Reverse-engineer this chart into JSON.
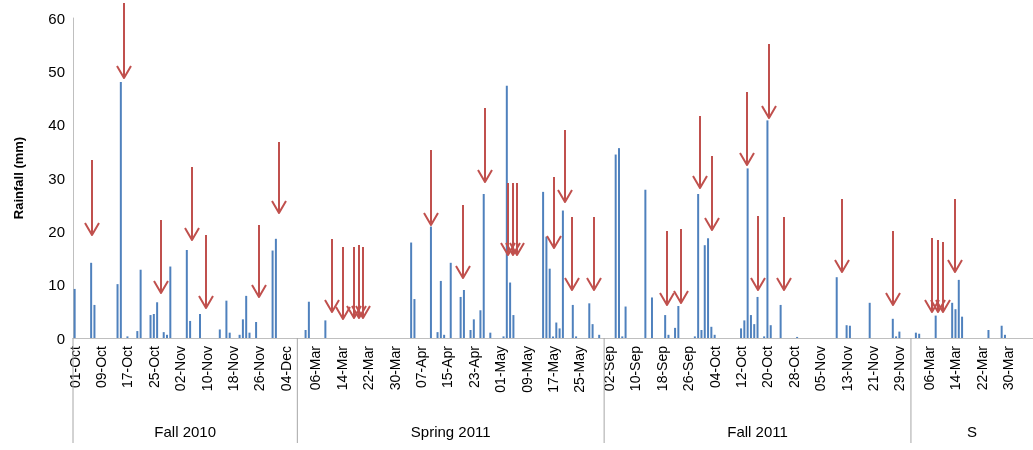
{
  "chart_data": {
    "type": "bar",
    "ylabel": "Rainfall (mm)",
    "color": "#4f81bd",
    "ylim": [
      0,
      60
    ],
    "yticks": [
      0,
      10,
      20,
      30,
      40,
      50,
      60
    ],
    "grid": false,
    "annotations": [
      "Fall 2010",
      "Spring 2011",
      "Fall 2011",
      "S"
    ],
    "categories": [
      "01-Oct",
      null,
      null,
      null,
      null,
      null,
      null,
      null,
      "09-Oct",
      null,
      null,
      null,
      null,
      null,
      null,
      null,
      "17-Oct",
      null,
      null,
      null,
      null,
      null,
      null,
      null,
      "25-Oct",
      null,
      null,
      null,
      null,
      null,
      null,
      null,
      "02-Nov",
      null,
      null,
      null,
      null,
      null,
      null,
      null,
      "10-Nov",
      null,
      null,
      null,
      null,
      null,
      null,
      null,
      "18-Nov",
      null,
      null,
      null,
      null,
      null,
      null,
      null,
      "26-Nov",
      null,
      null,
      null,
      null,
      null,
      null,
      null,
      "04-Dec",
      null,
      null,
      null,
      null,
      null,
      null,
      null,
      null,
      "06-Mar",
      null,
      null,
      null,
      null,
      null,
      null,
      null,
      "14-Mar",
      null,
      null,
      null,
      null,
      null,
      null,
      null,
      "22-Mar",
      null,
      null,
      null,
      null,
      null,
      null,
      null,
      "30-Mar",
      null,
      null,
      null,
      null,
      null,
      null,
      null,
      "07-Apr",
      null,
      null,
      null,
      null,
      null,
      null,
      null,
      "15-Apr",
      null,
      null,
      null,
      null,
      null,
      null,
      null,
      "23-Apr",
      null,
      null,
      null,
      null,
      null,
      null,
      null,
      "01-May",
      null,
      null,
      null,
      null,
      null,
      null,
      null,
      "09-May",
      null,
      null,
      null,
      null,
      null,
      null,
      null,
      "17-May",
      null,
      null,
      null,
      null,
      null,
      null,
      null,
      "25-May",
      null,
      null,
      null,
      null,
      null,
      null,
      null,
      null,
      "02-Sep",
      null,
      null,
      null,
      null,
      null,
      null,
      null,
      "10-Sep",
      null,
      null,
      null,
      null,
      null,
      null,
      null,
      "18-Sep",
      null,
      null,
      null,
      null,
      null,
      null,
      null,
      "26-Sep",
      null,
      null,
      null,
      null,
      null,
      null,
      null,
      "04-Oct",
      null,
      null,
      null,
      null,
      null,
      null,
      null,
      "12-Oct",
      null,
      null,
      null,
      null,
      null,
      null,
      null,
      "20-Oct",
      null,
      null,
      null,
      null,
      null,
      null,
      null,
      "28-Oct",
      null,
      null,
      null,
      null,
      null,
      null,
      null,
      "05-Nov",
      null,
      null,
      null,
      null,
      null,
      null,
      null,
      "13-Nov",
      null,
      null,
      null,
      null,
      null,
      null,
      null,
      "21-Nov",
      null,
      null,
      null,
      null,
      null,
      null,
      null,
      "29-Nov",
      null,
      null,
      null,
      null,
      null,
      null,
      null,
      null,
      "06-Mar",
      null,
      null,
      null,
      null,
      null,
      null,
      null,
      "14-Mar",
      null,
      null,
      null,
      null,
      null,
      null,
      null,
      "22-Mar",
      null,
      null,
      null,
      null,
      null,
      null,
      null,
      "30-Mar",
      null,
      null,
      null,
      null,
      null,
      null,
      null
    ],
    "values": [
      9.2,
      0,
      0,
      0,
      0,
      14.1,
      6.2,
      0,
      0,
      0,
      0,
      0,
      0,
      10.1,
      48,
      0,
      0.3,
      0,
      0,
      1.3,
      12.8,
      0,
      0,
      4.3,
      4.5,
      6.7,
      0,
      1.1,
      0.6,
      13.4,
      0,
      0,
      0,
      0,
      16.5,
      3.2,
      0,
      0,
      4.5,
      0,
      0,
      0,
      0,
      0,
      1.6,
      0,
      7.0,
      1.0,
      0,
      0,
      0.6,
      3.5,
      7.9,
      1.0,
      0,
      3.0,
      0,
      0,
      0,
      0,
      16.4,
      18.6,
      0,
      0,
      0,
      0,
      0,
      0,
      0,
      0,
      1.5,
      6.8,
      0,
      0,
      0,
      0,
      3.3,
      0,
      0,
      0,
      0,
      0,
      0,
      0,
      0,
      0,
      0,
      0,
      0,
      0,
      0,
      0,
      0,
      0,
      0,
      0,
      0,
      0,
      0,
      0,
      0,
      0,
      17.9,
      7.3,
      0,
      0,
      0,
      0,
      20.9,
      0,
      1.1,
      10.7,
      0.6,
      0,
      14.1,
      0,
      0,
      7.7,
      9.0,
      0,
      1.5,
      3.5,
      0,
      5.2,
      27.0,
      0,
      1.0,
      0,
      0,
      0,
      0.3,
      47.3,
      10.4,
      4.3,
      0,
      0,
      0,
      0,
      0,
      0,
      0,
      0,
      27.4,
      19.0,
      13.0,
      0.3,
      2.9,
      1.8,
      23.9,
      0,
      0,
      6.2,
      0.3,
      0,
      0,
      0,
      6.5,
      2.6,
      0,
      0.6,
      0,
      0,
      0,
      0,
      34.4,
      35.6,
      0.3,
      5.9,
      0,
      0,
      0,
      0,
      0,
      27.8,
      0,
      7.6,
      0,
      0,
      0,
      4.3,
      0.6,
      0,
      1.9,
      6.0,
      0,
      0,
      0,
      0,
      0.3,
      27.0,
      1.5,
      17.4,
      18.7,
      2.1,
      0.6,
      0,
      0,
      0,
      0,
      0,
      0,
      0,
      1.8,
      3.3,
      31.8,
      4.3,
      2.6,
      7.7,
      0,
      0.3,
      40.8,
      2.4,
      0,
      0,
      6.2,
      0,
      0,
      0,
      0,
      0.2,
      0,
      0,
      0,
      0,
      0,
      0,
      0,
      0,
      0,
      0,
      0,
      11.4,
      0,
      0,
      2.4,
      2.3,
      0,
      0,
      0,
      0,
      0,
      6.6,
      0,
      0,
      0,
      0,
      0,
      0,
      3.6,
      0.3,
      1.2,
      0,
      0,
      0,
      0,
      1.0,
      0.8,
      0,
      0,
      0,
      0,
      4.2,
      0,
      0,
      0,
      0,
      6.6,
      5.4,
      10.9,
      4.0,
      0,
      0,
      0,
      0,
      0,
      0,
      0,
      1.5,
      0,
      0,
      0,
      2.3,
      0.6,
      0,
      0,
      0,
      0,
      0,
      0,
      0,
      0
    ]
  }
}
